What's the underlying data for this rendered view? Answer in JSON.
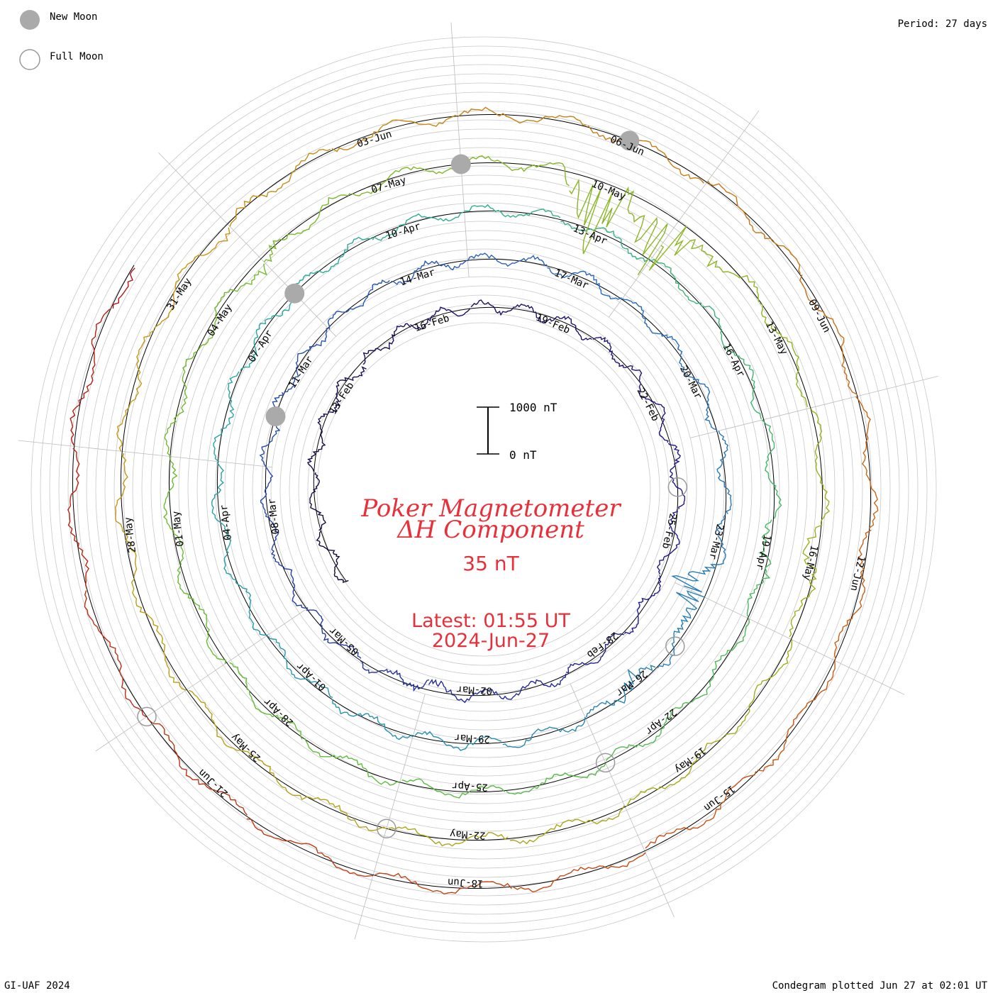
{
  "legend": {
    "new_moon_label": "New Moon",
    "full_moon_label": "Full Moon",
    "new_moon_color": "#aaaaaa",
    "full_moon_color": "#9a9a9a"
  },
  "period_label": "Period: 27 days",
  "title_line1": "Poker Magnetometer",
  "title_line2": "ΔH Component",
  "scale_value": "35 nT",
  "latest_line1": "Latest: 01:55 UT",
  "latest_line2": "2024-Jun-27",
  "scale_bar": {
    "top_label": "1000 nT",
    "bottom_label": "0 nT"
  },
  "footer_left": "GI-UAF 2024",
  "footer_right": "Condegram plotted Jun 27 at 02:01 UT",
  "accent_color": "#e8303a",
  "chart_data": {
    "type": "line",
    "period_days": 27,
    "start_date": "2024-Feb-08",
    "end_date": "2024-Jun-27",
    "grid": true,
    "date_labels": [
      "13-Feb",
      "16-Feb",
      "19-Feb",
      "22-Feb",
      "25-Feb",
      "28-Feb",
      "02-Mar",
      "05-Mar",
      "08-Mar",
      "11-Mar",
      "14-Mar",
      "17-Mar",
      "20-Mar",
      "23-Mar",
      "26-Mar",
      "29-Mar",
      "01-Apr",
      "04-Apr",
      "07-Apr",
      "10-Apr",
      "13-Apr",
      "16-Apr",
      "19-Apr",
      "22-Apr",
      "25-Apr",
      "28-Apr",
      "01-May",
      "04-May",
      "07-May",
      "10-May",
      "13-May",
      "16-May",
      "19-May",
      "22-May",
      "25-May",
      "28-May",
      "31-May",
      "03-Jun",
      "06-Jun",
      "09-Jun",
      "12-Jun",
      "15-Jun",
      "18-Jun",
      "21-Jun"
    ],
    "new_moons": [
      "2024-Mar-10",
      "2024-Apr-08",
      "2024-May-08",
      "2024-Jun-06"
    ],
    "full_moons": [
      "2024-Feb-24",
      "2024-Mar-25",
      "2024-Apr-23",
      "2024-May-23",
      "2024-Jun-22"
    ],
    "disturbances": [
      {
        "date": "2024-Feb-14",
        "amplitude_nT": 120
      },
      {
        "date": "2024-Feb-26",
        "amplitude_nT": 80
      },
      {
        "date": "2024-Mar-03",
        "amplitude_nT": 260
      },
      {
        "date": "2024-Mar-24",
        "amplitude_nT": 900
      },
      {
        "date": "2024-Mar-26",
        "amplitude_nT": 300
      },
      {
        "date": "2024-Apr-19",
        "amplitude_nT": 220
      },
      {
        "date": "2024-May-05",
        "amplitude_nT": 300
      },
      {
        "date": "2024-May-10",
        "amplitude_nT": 1500
      },
      {
        "date": "2024-May-11",
        "amplitude_nT": 1400
      },
      {
        "date": "2024-May-16",
        "amplitude_nT": 260
      },
      {
        "date": "2024-Jun-01",
        "amplitude_nT": 180
      }
    ]
  }
}
